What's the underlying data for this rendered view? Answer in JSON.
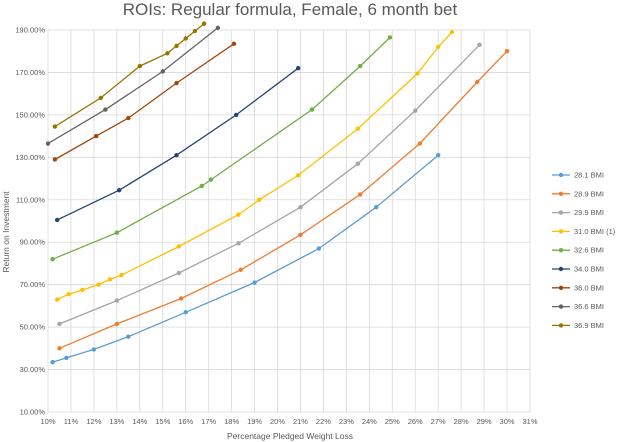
{
  "chart_data": {
    "type": "line",
    "title": "ROIs: Regular formula, Female, 6 month bet",
    "xlabel": "Percentage Pledged Weight Loss",
    "ylabel": "Return on Investment",
    "xlim": [
      10,
      31
    ],
    "ylim": [
      10,
      190
    ],
    "x_ticks": [
      10,
      11,
      12,
      13,
      14,
      15,
      16,
      17,
      18,
      19,
      20,
      21,
      22,
      23,
      24,
      25,
      26,
      27,
      28,
      29,
      30,
      31
    ],
    "x_tick_labels": [
      "10%",
      "11%",
      "12%",
      "13%",
      "14%",
      "15%",
      "16%",
      "17%",
      "18%",
      "19%",
      "20%",
      "21%",
      "22%",
      "23%",
      "24%",
      "25%",
      "26%",
      "27%",
      "28%",
      "29%",
      "30%",
      "31%"
    ],
    "y_ticks": [
      10,
      30,
      50,
      70,
      90,
      110,
      130,
      150,
      170,
      190
    ],
    "y_tick_labels": [
      "10.00%",
      "30.00%",
      "50.00%",
      "70.00%",
      "90.00%",
      "110.00%",
      "130.00%",
      "150.00%",
      "170.00%",
      "190.00%"
    ],
    "grid": true,
    "legend_position": "right",
    "series": [
      {
        "name": "28.1 BMI",
        "color": "#5b9bd5",
        "x": [
          10.2,
          10.8,
          12.0,
          13.5,
          16.0,
          19.0,
          21.8,
          24.3,
          27.0
        ],
        "y": [
          33.5,
          35.5,
          39.5,
          45.5,
          57.0,
          71.0,
          87.0,
          106.5,
          131.0
        ]
      },
      {
        "name": "28.9 BMI",
        "color": "#ed7d31",
        "x": [
          10.5,
          13.0,
          15.8,
          18.4,
          21.0,
          23.6,
          26.2,
          28.7,
          30.0
        ],
        "y": [
          40.0,
          51.5,
          63.5,
          77.0,
          93.5,
          112.5,
          136.5,
          165.5,
          180.0
        ]
      },
      {
        "name": "29.9 BMI",
        "color": "#a5a5a5",
        "x": [
          10.5,
          13.0,
          15.7,
          18.3,
          21.0,
          23.5,
          26.0,
          28.8
        ],
        "y": [
          51.5,
          62.5,
          75.5,
          89.5,
          106.5,
          127.0,
          152.0,
          183.0
        ]
      },
      {
        "name": "31.0 BMI (1)",
        "color": "#ffc000",
        "x": [
          10.4,
          10.9,
          11.5,
          12.2,
          12.7,
          13.2,
          15.7,
          18.3,
          19.2,
          20.9,
          23.5,
          26.1,
          27.0,
          27.6
        ],
        "y": [
          63.0,
          65.5,
          67.5,
          70.0,
          72.5,
          74.5,
          88.0,
          103.0,
          110.0,
          121.5,
          143.5,
          169.5,
          182.0,
          189.0
        ]
      },
      {
        "name": "32.6 BMI",
        "color": "#70ad47",
        "x": [
          10.2,
          13.0,
          16.7,
          17.1,
          21.5,
          23.6,
          24.9
        ],
        "y": [
          82.0,
          94.5,
          116.5,
          119.5,
          152.5,
          173.0,
          186.5
        ]
      },
      {
        "name": "34.0 BMI",
        "color": "#264478",
        "x": [
          10.4,
          13.1,
          15.6,
          18.2,
          20.9
        ],
        "y": [
          100.5,
          114.5,
          131.0,
          150.0,
          172.0
        ]
      },
      {
        "name": "36.0 BMI",
        "color": "#9e480e",
        "x": [
          10.3,
          12.1,
          13.5,
          15.6,
          18.1
        ],
        "y": [
          129.0,
          140.0,
          148.5,
          165.0,
          183.5
        ]
      },
      {
        "name": "36.6 BMI",
        "color": "#636363",
        "x": [
          10.0,
          12.5,
          15.0,
          17.4
        ],
        "y": [
          136.5,
          152.5,
          170.5,
          191.0
        ]
      },
      {
        "name": "36.9 BMI",
        "color": "#997300",
        "x": [
          10.3,
          12.3,
          14.0,
          15.2,
          15.6,
          16.0,
          16.4,
          16.8
        ],
        "y": [
          144.5,
          158.0,
          173.0,
          179.0,
          182.5,
          186.0,
          189.5,
          193.0
        ]
      }
    ]
  }
}
